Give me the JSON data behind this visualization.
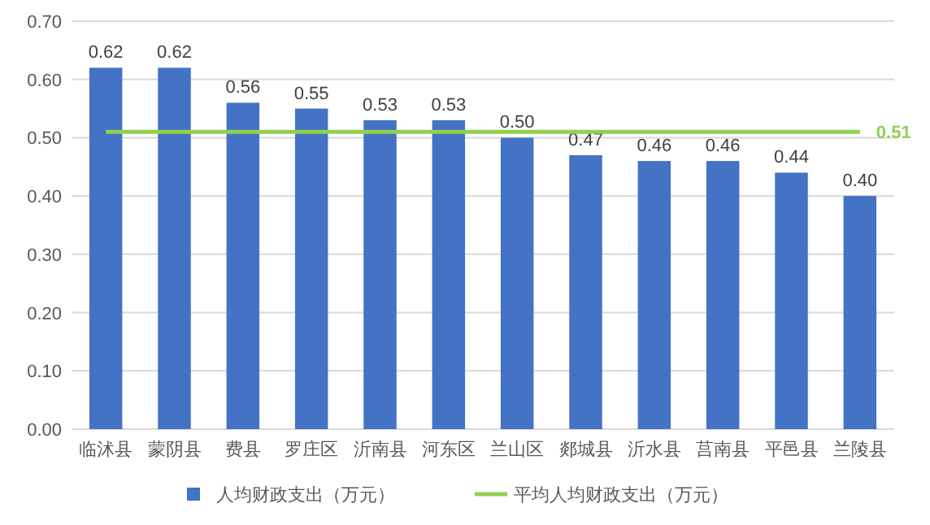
{
  "chart_data": {
    "type": "bar",
    "categories": [
      "临沭县",
      "蒙阴县",
      "费县",
      "罗庄区",
      "沂南县",
      "河东区",
      "兰山区",
      "郯城县",
      "沂水县",
      "莒南县",
      "平邑县",
      "兰陵县"
    ],
    "series": [
      {
        "name": "人均财政支出（万元）",
        "color": "#4472c4",
        "values": [
          0.62,
          0.62,
          0.56,
          0.55,
          0.53,
          0.53,
          0.5,
          0.47,
          0.46,
          0.46,
          0.44,
          0.4
        ],
        "value_labels": [
          "0.62",
          "0.62",
          "0.56",
          "0.55",
          "0.53",
          "0.53",
          "0.50",
          "0.47",
          "0.46",
          "0.46",
          "0.44",
          "0.40"
        ]
      },
      {
        "name": "平均人均财政支出（万元）",
        "type": "line",
        "color": "#92d050",
        "values": [
          0.51,
          0.51,
          0.51,
          0.51,
          0.51,
          0.51,
          0.51,
          0.51,
          0.51,
          0.51,
          0.51,
          0.51
        ],
        "value_labels": [
          null,
          null,
          null,
          null,
          null,
          null,
          null,
          null,
          null,
          null,
          null,
          "0.51"
        ]
      }
    ],
    "ylim": [
      0,
      0.7
    ],
    "yticks": [
      {
        "value": 0,
        "label": "0.00"
      },
      {
        "value": 0.1,
        "label": "0.10"
      },
      {
        "value": 0.2,
        "label": "0.20"
      },
      {
        "value": 0.3,
        "label": "0.30"
      },
      {
        "value": 0.4,
        "label": "0.40"
      },
      {
        "value": 0.5,
        "label": "0.50"
      },
      {
        "value": 0.6,
        "label": "0.60"
      },
      {
        "value": 0.7,
        "label": "0.70"
      }
    ],
    "grid": "y",
    "legend": "bottom"
  }
}
